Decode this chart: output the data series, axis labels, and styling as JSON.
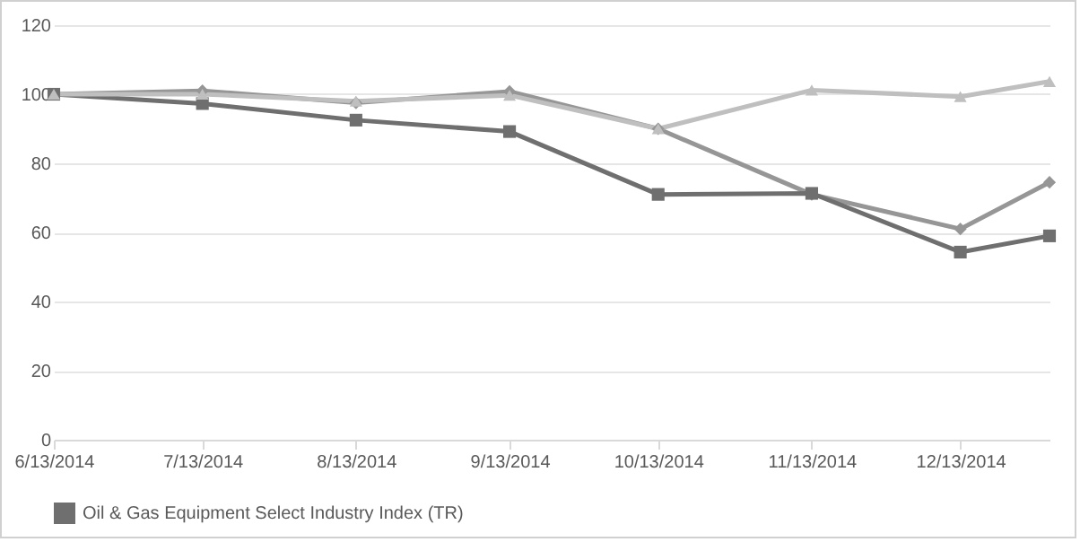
{
  "chart_data": {
    "type": "line",
    "x": [
      "2014-06-13",
      "2014-07-13",
      "2014-08-13",
      "2014-09-13",
      "2014-10-13",
      "2014-11-13",
      "2014-12-13",
      "2014-12-31"
    ],
    "series": [
      {
        "color": "#969696",
        "marker": "diamond",
        "values": [
          100,
          101,
          97.5,
          100.8,
          90,
          71,
          61,
          74.5
        ]
      },
      {
        "name": "Oil & Gas Equipment Select Industry Index (TR)",
        "color": "#6f6f6f",
        "marker": "square",
        "values": [
          100,
          97.3,
          92.5,
          89.2,
          71,
          71.3,
          54.3,
          59
        ]
      },
      {
        "color": "#bfbfbf",
        "marker": "triangle",
        "values": [
          100,
          100,
          98,
          99.7,
          90,
          101.2,
          99.3,
          103.7
        ]
      }
    ],
    "xlim": [
      "2014-06-13",
      "2014-12-31"
    ],
    "xticks": [
      {
        "value": "2014-06-13",
        "label": "6/13/2014"
      },
      {
        "value": "2014-07-13",
        "label": "7/13/2014"
      },
      {
        "value": "2014-08-13",
        "label": "8/13/2014"
      },
      {
        "value": "2014-09-13",
        "label": "9/13/2014"
      },
      {
        "value": "2014-10-13",
        "label": "10/13/2014"
      },
      {
        "value": "2014-11-13",
        "label": "11/13/2014"
      },
      {
        "value": "2014-12-13",
        "label": "12/13/2014"
      }
    ],
    "ylim": [
      0,
      120
    ],
    "yticks": [
      0,
      20,
      40,
      60,
      80,
      100,
      120
    ],
    "grid": "y",
    "legend": "bottom",
    "line_style": "solid"
  }
}
